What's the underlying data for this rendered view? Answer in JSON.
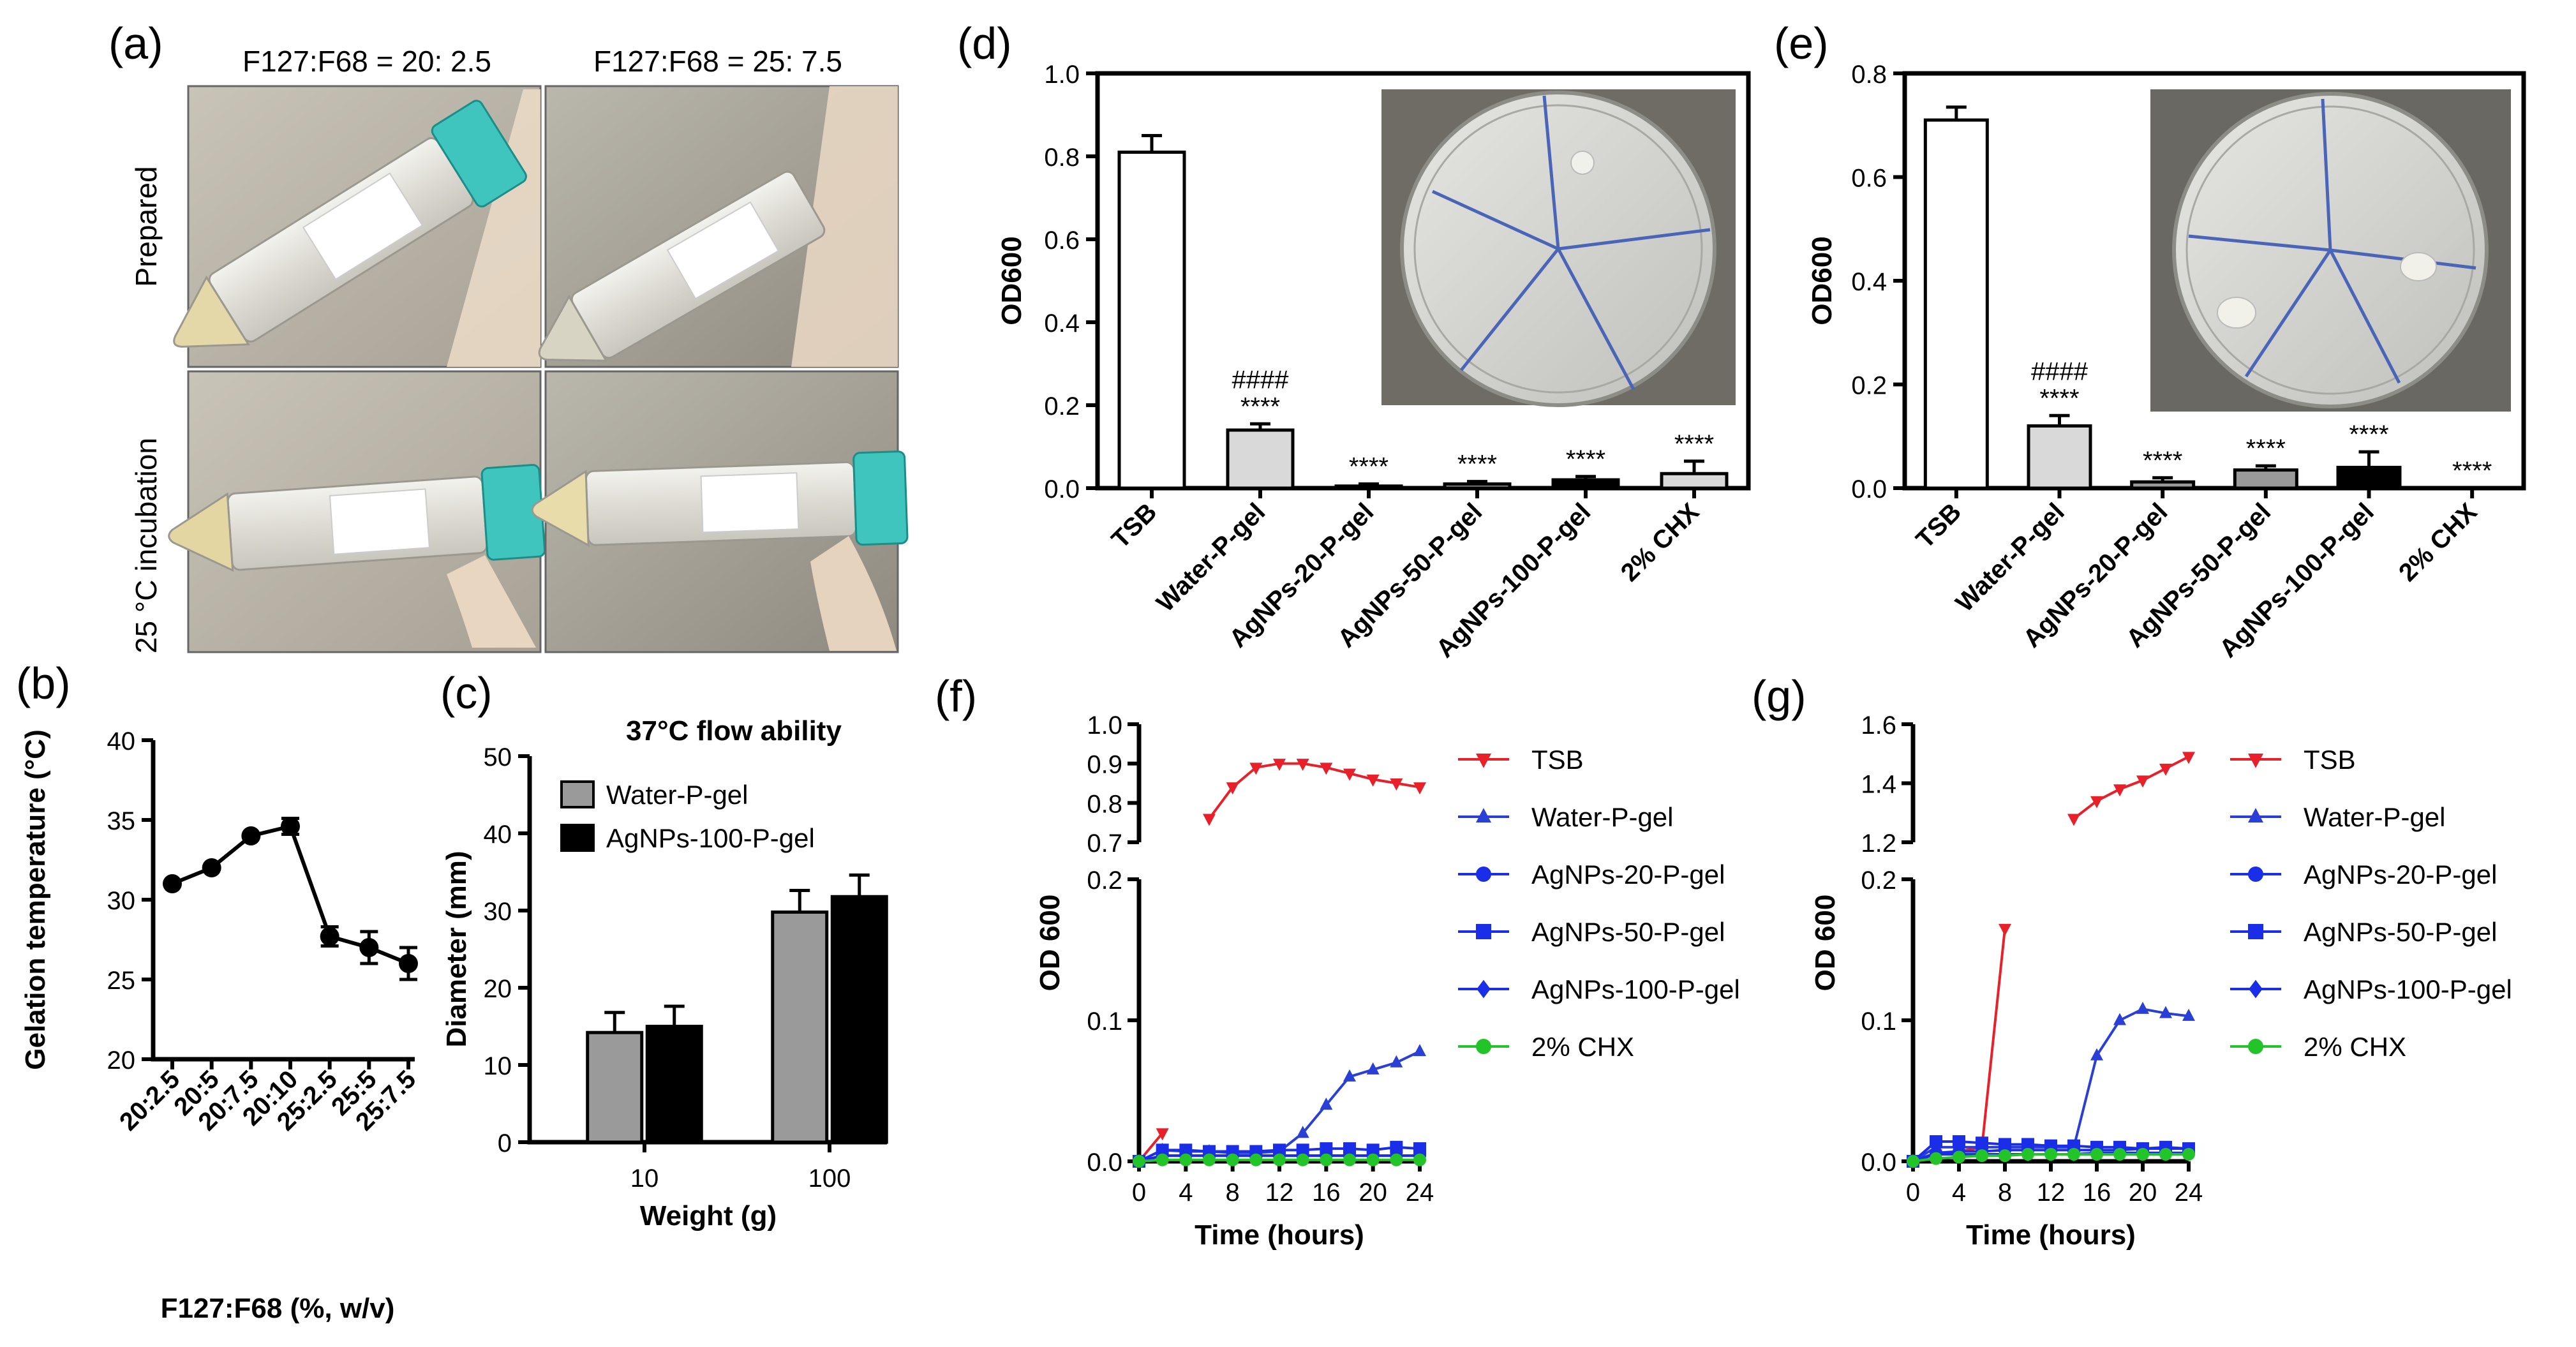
{
  "panels": {
    "a": {
      "label": "(a)",
      "col_headers": [
        "F127:F68 = 20: 2.5",
        "F127:F68 = 25: 7.5"
      ],
      "row_headers": [
        "Prepared",
        "25 °C incubation"
      ]
    },
    "b": {
      "label": "(b)"
    },
    "c": {
      "label": "(c)"
    },
    "d": {
      "label": "(d)"
    },
    "e": {
      "label": "(e)"
    },
    "f": {
      "label": "(f)"
    },
    "g": {
      "label": "(g)"
    }
  },
  "colors": {
    "TSB": "#e8202a",
    "Water-P-gel": "#2a3fd6",
    "AgNPs-20-P-gel": "#1a2ee8",
    "AgNPs-50-P-gel": "#1a2ee8",
    "AgNPs-100-P-gel": "#1a2ee8",
    "2% CHX": "#22c42a",
    "bar_light": "#d9d9d9",
    "bar_grey": "#9a9a9a",
    "bar_black": "#000000"
  },
  "chart_data": [
    {
      "id": "b",
      "type": "line",
      "title": "",
      "xlabel": "F127:F68 (%, w/v)",
      "ylabel": "Gelation temperature (°C)",
      "categories": [
        "20:2.5",
        "20:5",
        "20:7.5",
        "20:10",
        "25:2.5",
        "25:5",
        "25:7.5"
      ],
      "values": [
        31,
        32,
        34,
        34.6,
        27.7,
        27,
        26
      ],
      "errors": [
        0,
        0,
        0,
        0.5,
        0.6,
        1.0,
        1.0
      ],
      "ylim": [
        20,
        40
      ],
      "yticks": [
        20,
        25,
        30,
        35,
        40
      ]
    },
    {
      "id": "c",
      "type": "bar",
      "title": "37°C flow ability",
      "xlabel": "Weight (g)",
      "ylabel": "Diameter (mm)",
      "categories": [
        "10",
        "100"
      ],
      "series": [
        {
          "name": "Water-P-gel",
          "values": [
            14.2,
            29.8
          ],
          "errors": [
            2.6,
            2.8
          ]
        },
        {
          "name": "AgNPs-100-P-gel",
          "values": [
            15,
            31.8
          ],
          "errors": [
            2.6,
            2.8
          ]
        }
      ],
      "ylim": [
        0,
        50
      ],
      "yticks": [
        0,
        10,
        20,
        30,
        40,
        50
      ],
      "legend": "top-left"
    },
    {
      "id": "d",
      "type": "bar",
      "title": "",
      "xlabel": "",
      "ylabel": "OD600",
      "categories": [
        "TSB",
        "Water-P-gel",
        "AgNPs-20-P-gel",
        "AgNPs-50-P-gel",
        "AgNPs-100-P-gel",
        "2% CHX"
      ],
      "values": [
        0.81,
        0.14,
        0.005,
        0.01,
        0.02,
        0.035
      ],
      "errors": [
        0.04,
        0.015,
        0.005,
        0.006,
        0.008,
        0.03
      ],
      "annotations": [
        "",
        "####\n****",
        "****",
        "****",
        "****",
        "****"
      ],
      "ylim": [
        0,
        1.0
      ],
      "yticks": [
        0.0,
        0.2,
        0.4,
        0.6,
        0.8,
        1.0
      ]
    },
    {
      "id": "e",
      "type": "bar",
      "title": "",
      "xlabel": "",
      "ylabel": "OD600",
      "categories": [
        "TSB",
        "Water-P-gel",
        "AgNPs-20-P-gel",
        "AgNPs-50-P-gel",
        "AgNPs-100-P-gel",
        "2% CHX"
      ],
      "values": [
        0.71,
        0.12,
        0.012,
        0.035,
        0.04,
        0.0
      ],
      "errors": [
        0.025,
        0.02,
        0.008,
        0.008,
        0.03,
        0.0
      ],
      "annotations": [
        "",
        "####\n****",
        "****",
        "****",
        "****",
        "****"
      ],
      "ylim": [
        0,
        0.8
      ],
      "yticks": [
        0.0,
        0.2,
        0.4,
        0.6,
        0.8
      ]
    },
    {
      "id": "f",
      "type": "line",
      "title": "",
      "xlabel": "Time (hours)",
      "ylabel": "OD 600",
      "x": [
        0,
        2,
        4,
        6,
        8,
        10,
        12,
        14,
        16,
        18,
        20,
        22,
        24
      ],
      "xticks": [
        0,
        4,
        8,
        12,
        16,
        20,
        24
      ],
      "lower_ylim": [
        0,
        0.2
      ],
      "lower_yticks": [
        0.0,
        0.1,
        0.2
      ],
      "upper_ylim": [
        0.7,
        1.0
      ],
      "upper_yticks": [
        0.7,
        0.8,
        0.9,
        1.0
      ],
      "series": [
        {
          "name": "TSB",
          "marker": "triangle-down",
          "values": [
            0.0,
            0.02,
            null,
            0.76,
            0.84,
            0.89,
            0.9,
            0.9,
            0.89,
            0.875,
            0.86,
            0.85,
            0.84
          ]
        },
        {
          "name": "Water-P-gel",
          "marker": "triangle-up",
          "values": [
            0.0,
            0.008,
            0.007,
            0.007,
            0.006,
            0.006,
            0.007,
            0.02,
            0.04,
            0.06,
            0.065,
            0.07,
            0.078
          ]
        },
        {
          "name": "AgNPs-20-P-gel",
          "marker": "circle",
          "values": [
            0.0,
            0.004,
            0.004,
            0.004,
            0.004,
            0.004,
            0.004,
            0.004,
            0.004,
            0.004,
            0.004,
            0.004,
            0.004
          ]
        },
        {
          "name": "AgNPs-50-P-gel",
          "marker": "square",
          "values": [
            0.0,
            0.008,
            0.008,
            0.007,
            0.007,
            0.007,
            0.008,
            0.008,
            0.009,
            0.009,
            0.008,
            0.01,
            0.009
          ]
        },
        {
          "name": "AgNPs-100-P-gel",
          "marker": "diamond",
          "values": [
            0.0,
            0.004,
            0.004,
            0.004,
            0.004,
            0.004,
            0.004,
            0.004,
            0.004,
            0.004,
            0.004,
            0.004,
            0.004
          ]
        },
        {
          "name": "2% CHX",
          "marker": "circle",
          "values": [
            0.0,
            0.001,
            0.001,
            0.001,
            0.001,
            0.001,
            0.001,
            0.001,
            0.001,
            0.001,
            0.001,
            0.001,
            0.001
          ]
        }
      ],
      "legend": "right"
    },
    {
      "id": "g",
      "type": "line",
      "title": "",
      "xlabel": "Time (hours)",
      "ylabel": "OD 600",
      "x": [
        0,
        2,
        4,
        6,
        8,
        10,
        12,
        14,
        16,
        18,
        20,
        22,
        24
      ],
      "xticks": [
        0,
        4,
        8,
        12,
        16,
        20,
        24
      ],
      "lower_ylim": [
        0,
        0.2
      ],
      "lower_yticks": [
        0.0,
        0.1,
        0.2
      ],
      "upper_ylim": [
        1.2,
        1.6
      ],
      "upper_yticks": [
        1.2,
        1.4,
        1.6
      ],
      "series": [
        {
          "name": "TSB",
          "marker": "triangle-down",
          "values": [
            0.0,
            0.005,
            0.007,
            0.01,
            0.165,
            null,
            null,
            1.28,
            1.34,
            1.38,
            1.41,
            1.45,
            1.49
          ]
        },
        {
          "name": "Water-P-gel",
          "marker": "triangle-up",
          "values": [
            0.0,
            0.01,
            0.01,
            0.01,
            0.01,
            0.01,
            0.01,
            0.01,
            0.075,
            0.1,
            0.108,
            0.105,
            0.103
          ]
        },
        {
          "name": "AgNPs-20-P-gel",
          "marker": "circle",
          "values": [
            0.0,
            0.006,
            0.007,
            0.007,
            0.008,
            0.008,
            0.008,
            0.008,
            0.008,
            0.008,
            0.009,
            0.009,
            0.009
          ]
        },
        {
          "name": "AgNPs-50-P-gel",
          "marker": "square",
          "values": [
            0.0,
            0.014,
            0.014,
            0.013,
            0.012,
            0.012,
            0.011,
            0.011,
            0.01,
            0.01,
            0.009,
            0.01,
            0.009
          ]
        },
        {
          "name": "AgNPs-100-P-gel",
          "marker": "diamond",
          "values": [
            0.0,
            0.005,
            0.005,
            0.005,
            0.005,
            0.005,
            0.005,
            0.005,
            0.006,
            0.006,
            0.006,
            0.006,
            0.006
          ]
        },
        {
          "name": "2% CHX",
          "marker": "circle",
          "values": [
            0.0,
            0.002,
            0.003,
            0.004,
            0.004,
            0.005,
            0.005,
            0.005,
            0.005,
            0.005,
            0.005,
            0.005,
            0.005
          ]
        }
      ],
      "legend": "right"
    }
  ]
}
